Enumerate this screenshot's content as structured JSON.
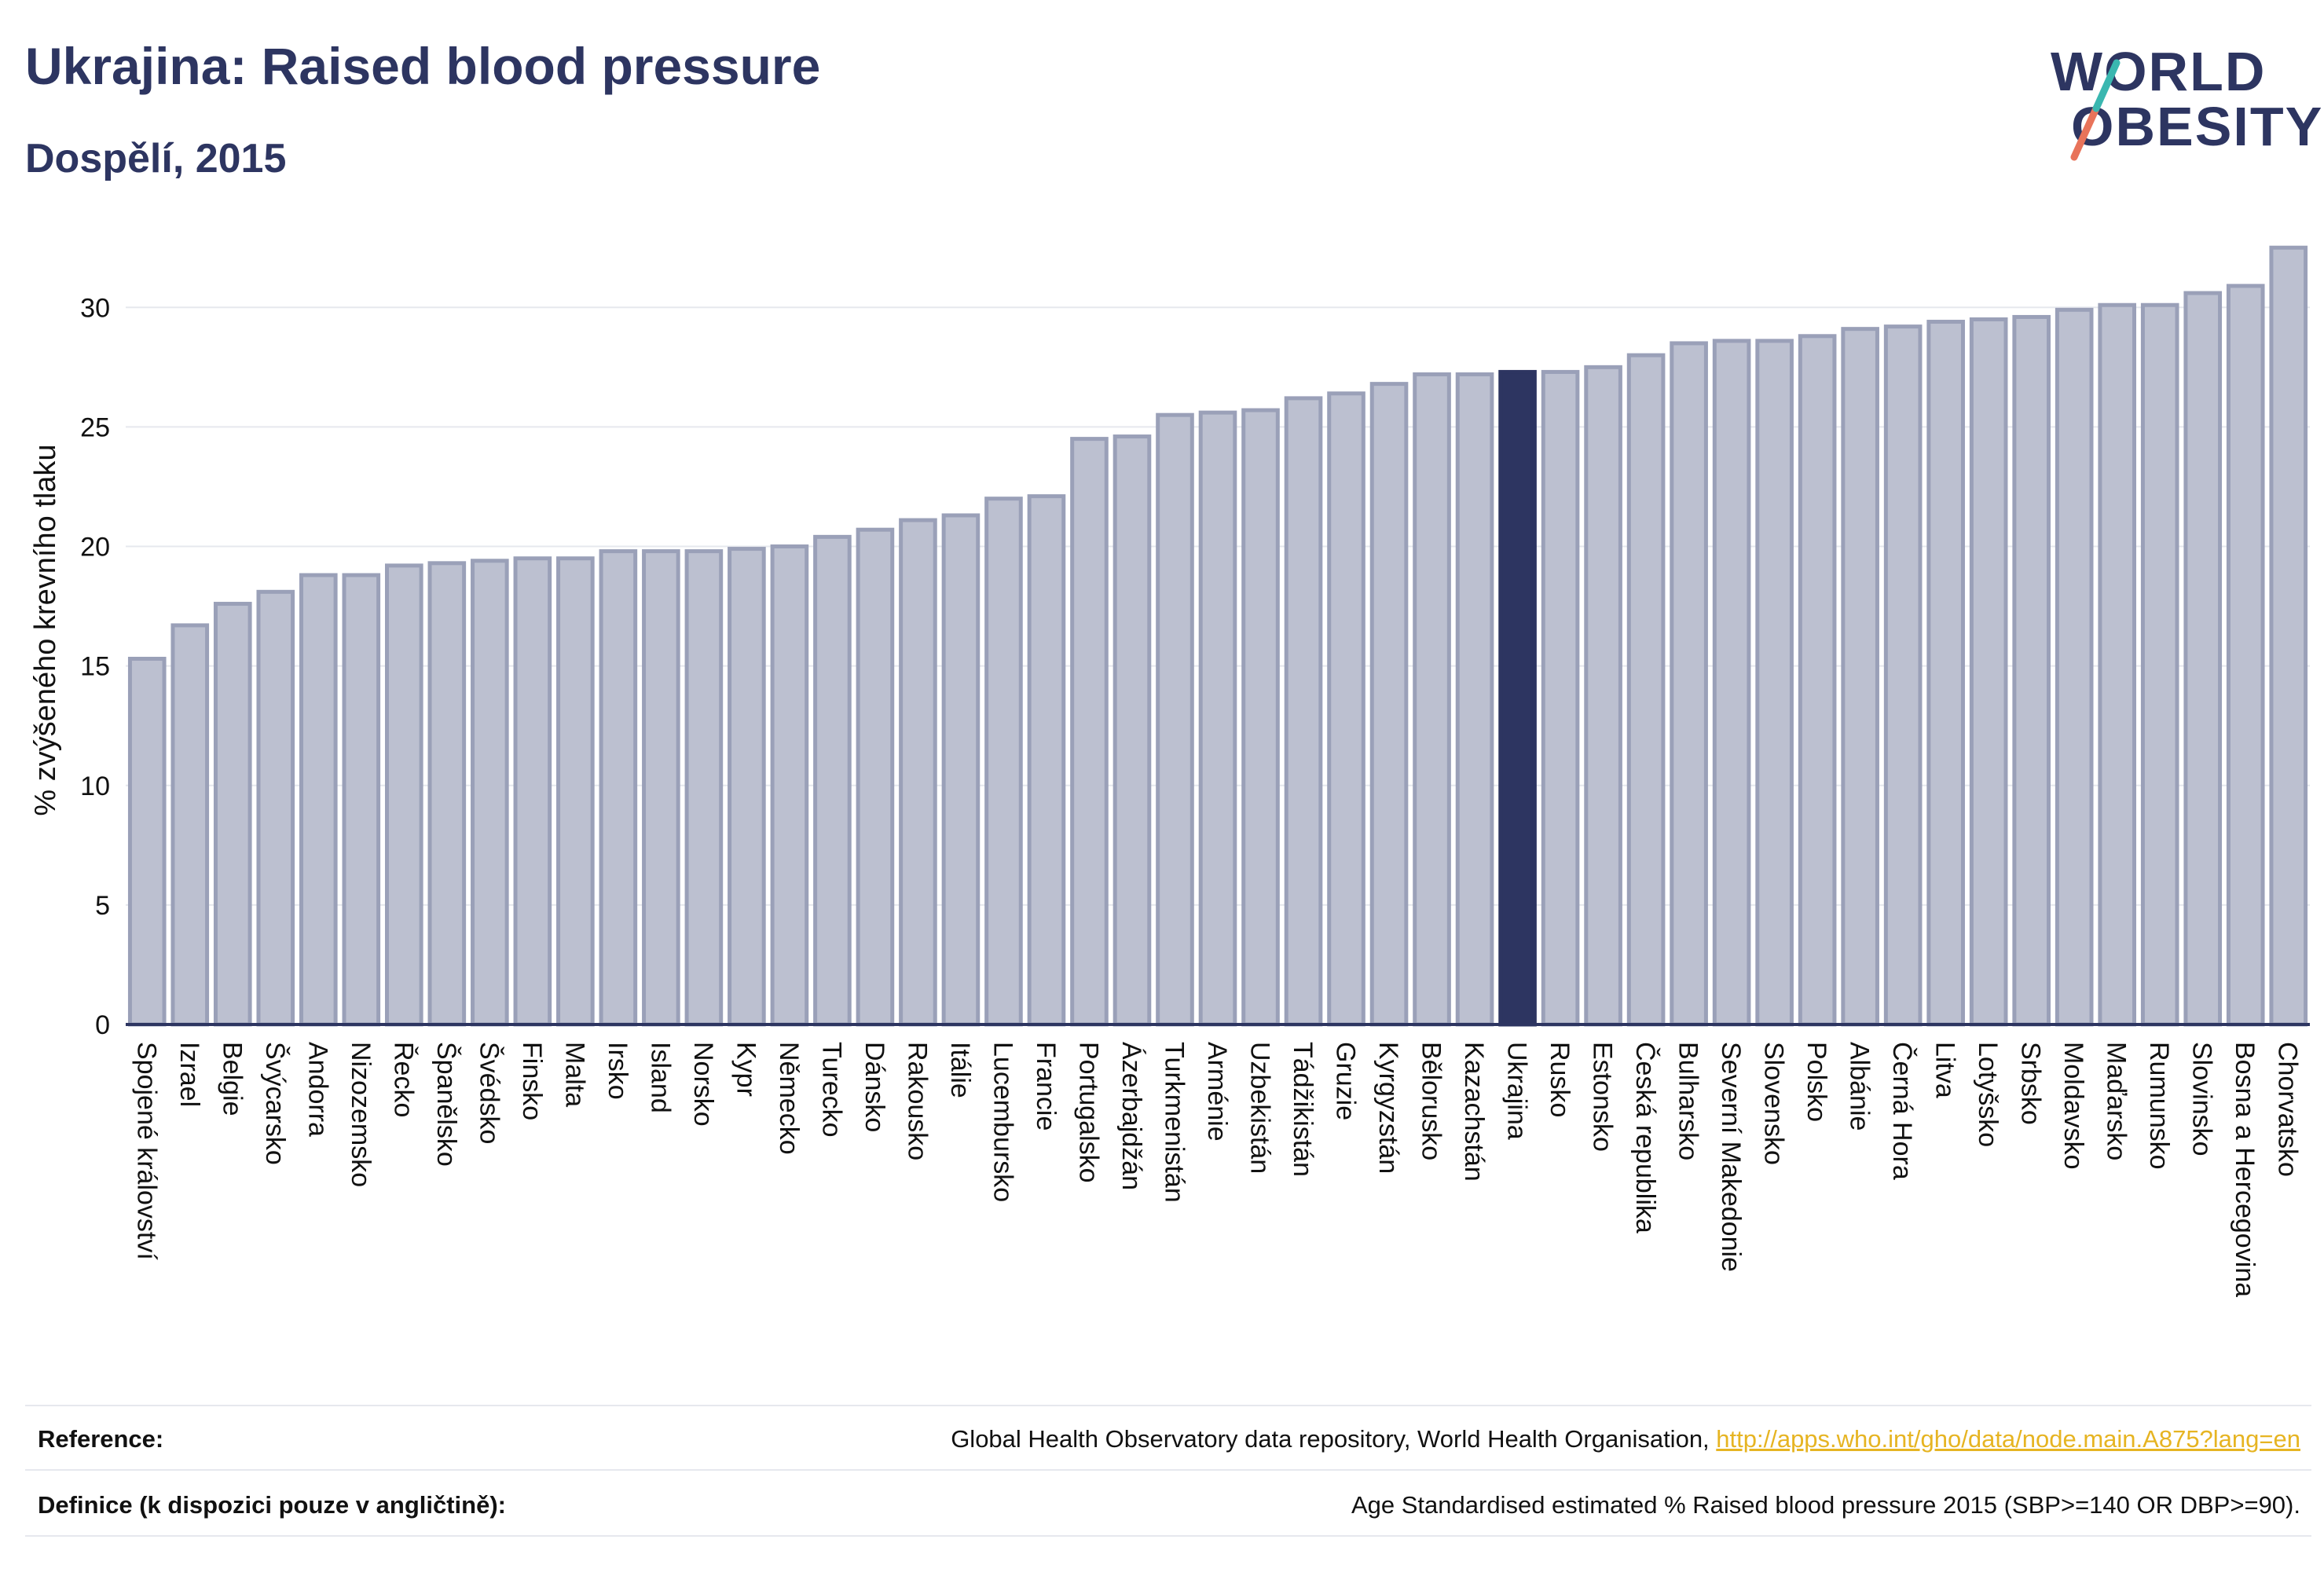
{
  "header": {
    "title": "Ukrajina: Raised blood pressure",
    "subtitle": "Dospělí, 2015"
  },
  "logo": {
    "line1": "WORLD",
    "line2": "OBESITY",
    "slash_colors": [
      "#e8735a",
      "#3ab7b0"
    ]
  },
  "colors": {
    "bar_fill": "#bcc0d0",
    "bar_stroke": "#9aa0b8",
    "highlight": "#2d3561",
    "grid": "#e6e8ee",
    "axis": "#2d3561"
  },
  "chart_data": {
    "type": "bar",
    "ylabel": "% zvýšeného krevního tlaku",
    "ylim": [
      0,
      33
    ],
    "yticks": [
      0,
      5,
      10,
      15,
      20,
      25,
      30
    ],
    "grid": true,
    "highlight": "Ukrajina",
    "categories": [
      "Spojené království",
      "Izrael",
      "Belgie",
      "Švýcarsko",
      "Andorra",
      "Nizozemsko",
      "Řecko",
      "Španělsko",
      "Švédsko",
      "Finsko",
      "Malta",
      "Irsko",
      "Island",
      "Norsko",
      "Kypr",
      "Německo",
      "Turecko",
      "Dánsko",
      "Rakousko",
      "Itálie",
      "Lucembursko",
      "Francie",
      "Portugalsko",
      "Ázerbajdžán",
      "Turkmenistán",
      "Arménie",
      "Uzbekistán",
      "Tádžikistán",
      "Gruzie",
      "Kyrgyzstán",
      "Bělorusko",
      "Kazachstán",
      "Ukrajina",
      "Rusko",
      "Estonsko",
      "Česká republika",
      "Bulharsko",
      "Severní Makedonie",
      "Slovensko",
      "Polsko",
      "Albánie",
      "Černá Hora",
      "Litva",
      "Lotyšsko",
      "Srbsko",
      "Moldavsko",
      "Maďarsko",
      "Rumunsko",
      "Slovinsko",
      "Bosna a Hercegovina",
      "Chorvatsko"
    ],
    "values": [
      15.3,
      16.7,
      17.6,
      18.1,
      18.8,
      18.8,
      19.2,
      19.3,
      19.4,
      19.5,
      19.5,
      19.8,
      19.8,
      19.8,
      19.9,
      20.0,
      20.4,
      20.7,
      21.1,
      21.3,
      22.0,
      22.1,
      24.5,
      24.6,
      25.5,
      25.6,
      25.7,
      26.2,
      26.4,
      26.8,
      27.2,
      27.2,
      27.3,
      27.3,
      27.5,
      28.0,
      28.5,
      28.6,
      28.6,
      28.8,
      29.1,
      29.2,
      29.4,
      29.5,
      29.6,
      29.9,
      30.1,
      30.1,
      30.6,
      30.9,
      32.5
    ]
  },
  "footer": {
    "reference_label": "Reference:",
    "reference_text": "Global Health Observatory data repository, World Health Organisation, ",
    "reference_link": "http://apps.who.int/gho/data/node.main.A875?lang=en",
    "definition_label": "Definice (k dispozici pouze v angličtině):",
    "definition_text": "Age Standardised estimated % Raised blood pressure 2015 (SBP>=140 OR DBP>=90)."
  }
}
